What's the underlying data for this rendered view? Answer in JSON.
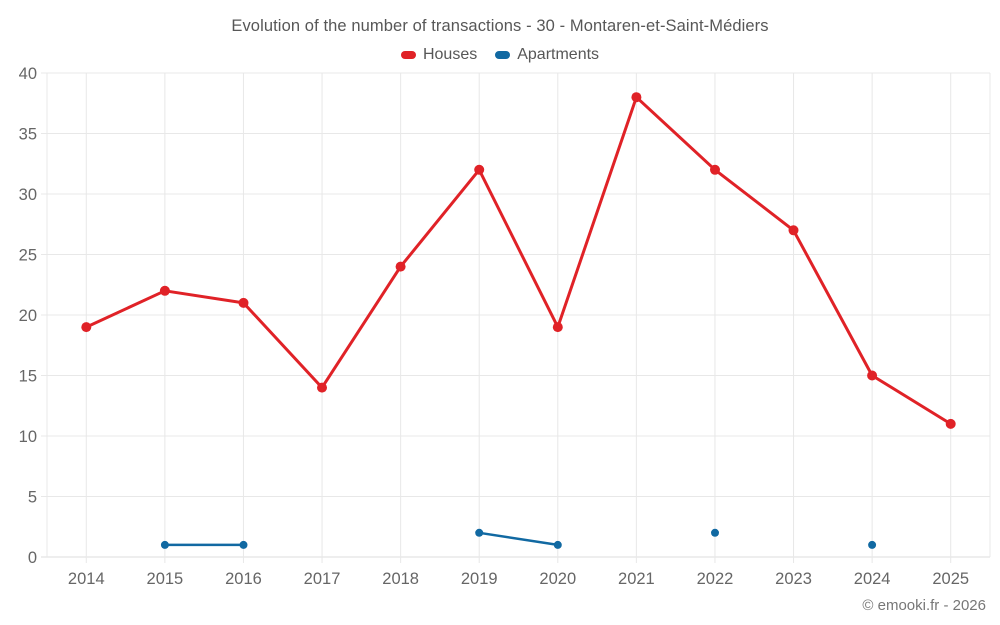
{
  "chart_data": {
    "type": "line",
    "title": "Evolution of the number of transactions - 30 - Montaren-et-Saint-Médiers",
    "categories": [
      "2014",
      "2015",
      "2016",
      "2017",
      "2018",
      "2019",
      "2020",
      "2021",
      "2022",
      "2023",
      "2024",
      "2025"
    ],
    "series": [
      {
        "name": "Houses",
        "color": "#e02227",
        "marker_radius": 5,
        "line_width": 3,
        "values": [
          19,
          22,
          21,
          14,
          24,
          32,
          19,
          38,
          32,
          27,
          15,
          11
        ]
      },
      {
        "name": "Apartments",
        "color": "#1169a2",
        "marker_radius": 4,
        "line_width": 2.5,
        "values": [
          null,
          1,
          1,
          null,
          null,
          2,
          1,
          null,
          2,
          null,
          1,
          null
        ]
      }
    ],
    "ylim": [
      0,
      40
    ],
    "ytick_step": 5,
    "xlabel": "",
    "ylabel": "",
    "grid": true,
    "legend_position": "top",
    "axis_text_color": "#666666",
    "grid_color": "#e8e8e8",
    "axis_line_color": "#dddddd"
  },
  "footer": {
    "copyright": "© emooki.fr - 2026"
  }
}
